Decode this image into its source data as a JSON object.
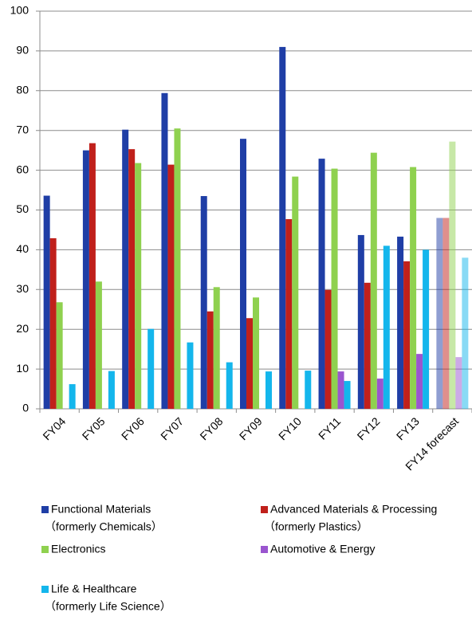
{
  "chart_data": {
    "type": "bar",
    "categories": [
      "FY04",
      "FY05",
      "FY06",
      "FY07",
      "FY08",
      "FY09",
      "FY10",
      "FY11",
      "FY12",
      "FY13",
      "FY14 forecast"
    ],
    "series": [
      {
        "name": "Functional Materials",
        "subname": "（formerly Chemicals）",
        "color": "#1f3ea6",
        "values": [
          53.6,
          65,
          70.2,
          79.4,
          53.5,
          67.9,
          91,
          62.9,
          43.7,
          43.3,
          48
        ]
      },
      {
        "name": "Advanced Materials & Processing",
        "subname": "（formerly Plastics）",
        "color": "#c0201b",
        "values": [
          42.9,
          66.8,
          65.3,
          61.4,
          24.5,
          22.8,
          47.7,
          29.9,
          31.7,
          37.1,
          48
        ]
      },
      {
        "name": "Electronics",
        "color": "#8fd14f",
        "values": [
          26.8,
          32,
          61.8,
          70.5,
          30.6,
          28,
          58.4,
          60.4,
          64.4,
          60.8,
          67.2
        ]
      },
      {
        "name": "Automotive & Energy",
        "color": "#9a55cf",
        "values": [
          null,
          null,
          null,
          null,
          null,
          null,
          null,
          9.4,
          7.6,
          13.8,
          13
        ]
      },
      {
        "name": "Life & Healthcare",
        "subname": "（formerly Life Science）",
        "color": "#14b6ec",
        "values": [
          6.2,
          9.5,
          20.1,
          16.7,
          11.7,
          9.4,
          9.6,
          7,
          41,
          40,
          38
        ]
      }
    ],
    "faded_category_index": 10,
    "ylim": [
      0,
      100
    ],
    "yticks": [
      0,
      10,
      20,
      30,
      40,
      50,
      60,
      70,
      80,
      90,
      100
    ],
    "grid": true
  }
}
